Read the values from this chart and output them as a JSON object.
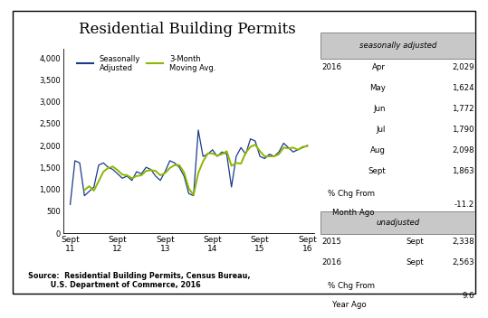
{
  "title": "Residential Building Permits",
  "source_text": "Source:  Residential Building Permits, Census Bureau,\n         U.S. Department of Commerce, 2016",
  "xtick_labels": [
    "Sept\n11",
    "Sept\n12",
    "Sept\n13",
    "Sept\n14",
    "Sept\n15",
    "Sept\n16"
  ],
  "ylim": [
    0,
    4200
  ],
  "line_color_sa": "#1a3a8c",
  "line_color_ma": "#8db600",
  "legend_sa": "Seasonally\nAdjusted",
  "legend_ma": "3-Month\nMoving Avg.",
  "seasonally_adjusted": [
    650,
    1650,
    1600,
    850,
    950,
    1050,
    1550,
    1600,
    1500,
    1450,
    1350,
    1250,
    1300,
    1200,
    1400,
    1350,
    1500,
    1450,
    1300,
    1200,
    1400,
    1650,
    1600,
    1500,
    1300,
    900,
    850,
    2350,
    1750,
    1800,
    1900,
    1750,
    1850,
    1800,
    1050,
    1750,
    1950,
    1800,
    2150,
    2100,
    1750,
    1700,
    1800,
    1750,
    1850,
    2050,
    1950,
    1850,
    1900,
    1950,
    2000
  ],
  "moving_avg": [
    null,
    null,
    null,
    980,
    1067,
    967,
    1183,
    1400,
    1483,
    1517,
    1433,
    1333,
    1317,
    1250,
    1300,
    1317,
    1417,
    1433,
    1417,
    1317,
    1367,
    1483,
    1550,
    1550,
    1383,
    1017,
    867,
    1367,
    1633,
    1817,
    1817,
    1767,
    1800,
    1867,
    1533,
    1600,
    1583,
    1833,
    1967,
    2017,
    1867,
    1750,
    1750,
    1750,
    1800,
    1950,
    1933,
    1950,
    1900,
    1967,
    1983
  ],
  "box_header_bg": "#c8c8c8",
  "seasonally_adjusted_header": "seasonally adjusted",
  "sa_year": "2016",
  "sa_months": [
    "Apr",
    "May",
    "Jun",
    "Jul",
    "Aug",
    "Sept"
  ],
  "sa_values": [
    "2,029",
    "1,624",
    "1,772",
    "1,790",
    "2,098",
    "1,863"
  ],
  "sa_pct_value": "-11.2",
  "unadjusted_header": "unadjusted",
  "ua_years": [
    "2015",
    "2016"
  ],
  "ua_months": [
    "Sept",
    "Sept"
  ],
  "ua_values": [
    "2,338",
    "2,563"
  ],
  "ua_pct_value": "9.6"
}
